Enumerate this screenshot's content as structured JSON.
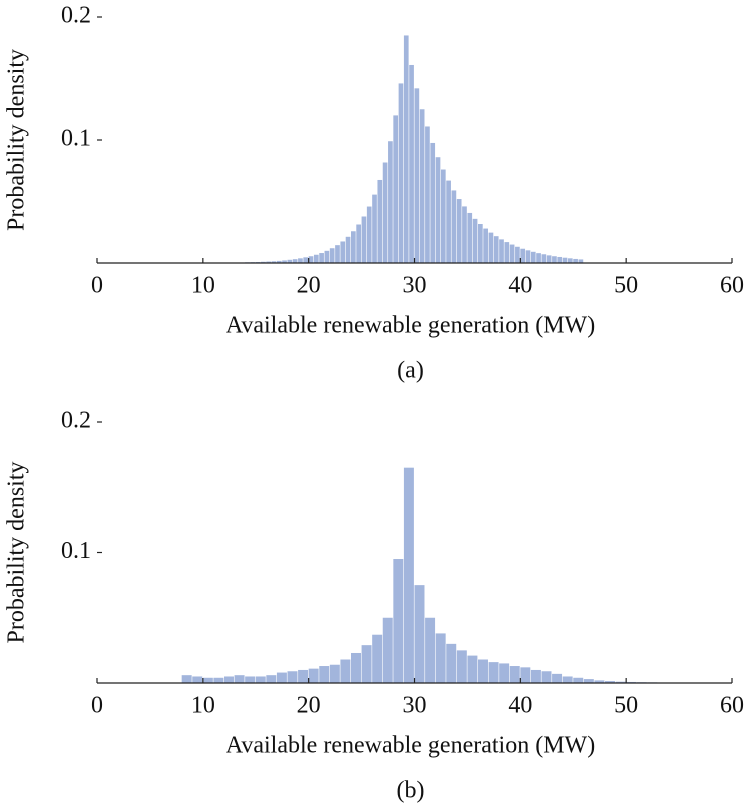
{
  "chart_data": [
    {
      "type": "histogram",
      "color": "#a2b5dc",
      "xlabel": "Available renewable generation (MW)",
      "ylabel": "Probability density",
      "caption": "(a)",
      "bins": [
        14,
        14.5,
        15,
        15.5,
        16,
        16.5,
        17,
        17.5,
        18,
        18.5,
        19,
        19.5,
        20,
        20.5,
        21,
        21.5,
        22,
        22.5,
        23,
        23.5,
        24,
        24.5,
        25,
        25.5,
        26,
        26.5,
        27,
        27.5,
        28,
        28.5,
        29,
        29.5,
        30,
        30.5,
        31,
        31.5,
        32,
        32.5,
        33,
        33.5,
        34,
        34.5,
        35,
        35.5,
        36,
        36.5,
        37,
        37.5,
        38,
        38.5,
        39,
        39.5,
        40,
        40.5,
        41,
        41.5,
        42,
        42.5,
        43,
        43.5,
        44,
        44.5,
        45,
        45.5,
        46
      ],
      "values": [
        0.0006,
        0.0007,
        0.0008,
        0.001,
        0.0012,
        0.0014,
        0.0017,
        0.0021,
        0.0026,
        0.0031,
        0.0038,
        0.0046,
        0.0055,
        0.0067,
        0.0081,
        0.0099,
        0.012,
        0.0145,
        0.0175,
        0.0213,
        0.0258,
        0.0313,
        0.0378,
        0.0459,
        0.0556,
        0.0675,
        0.0817,
        0.099,
        0.12,
        0.146,
        0.185,
        0.161,
        0.142,
        0.125,
        0.111,
        0.0976,
        0.086,
        0.076,
        0.067,
        0.059,
        0.052,
        0.046,
        0.0407,
        0.0359,
        0.0317,
        0.028,
        0.0247,
        0.0218,
        0.0192,
        0.017,
        0.015,
        0.0132,
        0.0116,
        0.0103,
        0.0091,
        0.008,
        0.0071,
        0.0062,
        0.0055,
        0.0049,
        0.0043,
        0.0038,
        0.0033,
        0.0029
      ],
      "xlim": [
        0,
        60
      ],
      "xticks": [
        0,
        10,
        20,
        30,
        40,
        50,
        60
      ],
      "ylim": [
        0,
        0.2
      ],
      "yticks": [
        0.1,
        0.2
      ]
    },
    {
      "type": "histogram",
      "color": "#a2b5dc",
      "xlabel": "Available renewable generation (MW)",
      "ylabel": "Probability density",
      "caption": "(b)",
      "bins": [
        8,
        9,
        10,
        11,
        12,
        13,
        14,
        15,
        16,
        17,
        18,
        19,
        20,
        21,
        22,
        23,
        24,
        25,
        26,
        27,
        28,
        29,
        30,
        31,
        32,
        33,
        34,
        35,
        36,
        37,
        38,
        39,
        40,
        41,
        42,
        43,
        44,
        45,
        46,
        47,
        48,
        49,
        50,
        51,
        52,
        53
      ],
      "values": [
        0.006,
        0.005,
        0.004,
        0.004,
        0.005,
        0.006,
        0.005,
        0.005,
        0.006,
        0.008,
        0.009,
        0.01,
        0.011,
        0.013,
        0.014,
        0.018,
        0.023,
        0.029,
        0.037,
        0.05,
        0.095,
        0.165,
        0.075,
        0.05,
        0.038,
        0.03,
        0.025,
        0.021,
        0.018,
        0.016,
        0.015,
        0.013,
        0.012,
        0.01,
        0.009,
        0.007,
        0.005,
        0.004,
        0.003,
        0.002,
        0.0015,
        0.001,
        0.0008,
        0.0006,
        0.0005
      ],
      "xlim": [
        0,
        60
      ],
      "xticks": [
        0,
        10,
        20,
        30,
        40,
        50,
        60
      ],
      "ylim": [
        0,
        0.2
      ],
      "yticks": [
        0.1,
        0.2
      ]
    }
  ]
}
